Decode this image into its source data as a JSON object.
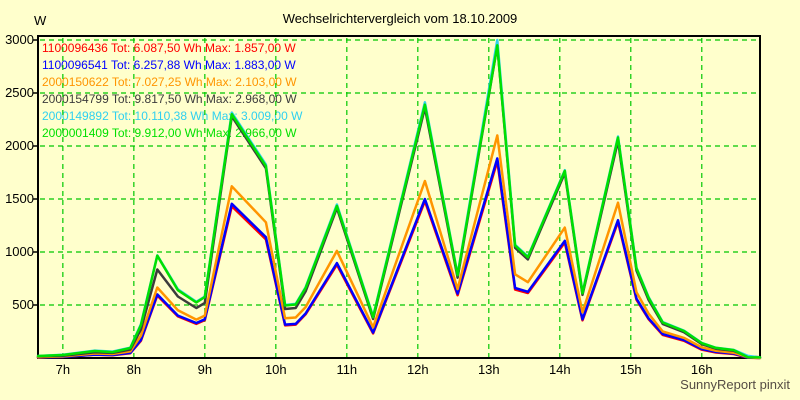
{
  "page": {
    "title": "Wechselrichtervergleich vom 18.10.2009",
    "footer": "SunnyReport pinxit",
    "background": "#ffffcc"
  },
  "chart_data": {
    "type": "line",
    "title": "Wechselrichtervergleich vom 18.10.2009",
    "ylabel": "W",
    "xlabel": "",
    "xlim": [
      6.65,
      16.82
    ],
    "ylim": [
      0,
      3000
    ],
    "y_ticks": [
      500,
      1000,
      1500,
      2000,
      2500,
      3000
    ],
    "x_ticks": [
      7,
      8,
      9,
      10,
      11,
      12,
      13,
      14,
      15,
      16
    ],
    "x_tick_labels": [
      "7h",
      "8h",
      "9h",
      "10h",
      "11h",
      "12h",
      "13h",
      "14h",
      "15h",
      "16h"
    ],
    "grid": true,
    "grid_color": "#00c800",
    "legend_position": "top-left-inside",
    "x": [
      6.65,
      7.0,
      7.45,
      7.7,
      7.95,
      8.1,
      8.33,
      8.62,
      8.88,
      9.0,
      9.38,
      9.86,
      10.13,
      10.28,
      10.42,
      10.86,
      11.37,
      12.1,
      12.56,
      13.12,
      13.37,
      13.55,
      14.07,
      14.32,
      14.82,
      15.08,
      15.25,
      15.45,
      15.75,
      16.0,
      16.2,
      16.45,
      16.65,
      16.82
    ],
    "series": [
      {
        "id": "1100096436",
        "label": "1100096436 Tot: 6.087,50 Wh Max: 1.857,00 W",
        "total_wh": "6.087,50",
        "max_w": "1.857,00",
        "color": "#ff0000",
        "values": [
          5,
          10,
          30,
          26,
          45,
          162,
          590,
          392,
          322,
          358,
          1432,
          1120,
          308,
          315,
          412,
          880,
          232,
          1480,
          592,
          1857,
          645,
          613,
          1090,
          356,
          1285,
          550,
          368,
          218,
          162,
          78,
          52,
          38,
          3,
          0
        ]
      },
      {
        "id": "1100096541",
        "label": "1100096541 Tot: 6.257,88 Wh Max: 1.883,00 W",
        "total_wh": "6.257,88",
        "max_w": "1.883,00",
        "color": "#0000ff",
        "values": [
          5,
          10,
          32,
          28,
          48,
          170,
          600,
          400,
          330,
          365,
          1455,
          1140,
          315,
          322,
          420,
          895,
          240,
          1500,
          608,
          1883,
          660,
          625,
          1106,
          365,
          1300,
          560,
          375,
          225,
          170,
          85,
          58,
          42,
          5,
          0
        ]
      },
      {
        "id": "2000150622",
        "label": "2000150622 Tot: 7.027,25 Wh Max: 2.103,00 W",
        "total_wh": "7.027,25",
        "max_w": "2.103,00",
        "color": "#ff9500",
        "values": [
          8,
          15,
          42,
          38,
          62,
          210,
          665,
          450,
          362,
          400,
          1620,
          1280,
          375,
          382,
          480,
          1010,
          290,
          1670,
          650,
          2100,
          790,
          715,
          1230,
          430,
          1465,
          620,
          420,
          250,
          190,
          100,
          68,
          50,
          8,
          0
        ]
      },
      {
        "id": "2000154799",
        "label": "2000154799 Tot: 9.817,50 Wh Max: 2.968,00 W",
        "total_wh": "9.817,50",
        "max_w": "2.968,00",
        "color": "#3c3c3c",
        "values": [
          15,
          22,
          55,
          48,
          80,
          270,
          835,
          580,
          472,
          520,
          2280,
          1790,
          462,
          472,
          628,
          1415,
          368,
          2360,
          758,
          2945,
          1040,
          930,
          1745,
          595,
          2048,
          825,
          550,
          322,
          243,
          130,
          88,
          68,
          14,
          8
        ]
      },
      {
        "id": "2000149892",
        "label": "2000149892 Tot: 10.110,38 Wh Max: 3.009,00 W",
        "total_wh": "10.110,38",
        "max_w": "3.009,00",
        "color": "#2fd0f0",
        "values": [
          19,
          30,
          70,
          60,
          97,
          318,
          968,
          648,
          530,
          580,
          2315,
          1825,
          500,
          510,
          668,
          1448,
          392,
          2412,
          788,
          3000,
          1068,
          958,
          1772,
          618,
          2090,
          852,
          576,
          340,
          258,
          142,
          96,
          76,
          20,
          5
        ]
      },
      {
        "id": "2000001409",
        "label": "2000001409 Tot: 9.912,00 Wh Max: 2.966,00 W",
        "total_wh": "9.912,00",
        "max_w": "2.966,00",
        "color": "#00e000",
        "values": [
          19,
          28,
          66,
          56,
          94,
          310,
          965,
          640,
          525,
          575,
          2300,
          1810,
          495,
          505,
          660,
          1435,
          385,
          2390,
          780,
          2950,
          1060,
          950,
          1765,
          610,
          2080,
          845,
          570,
          335,
          255,
          140,
          95,
          75,
          8,
          6
        ]
      }
    ]
  }
}
